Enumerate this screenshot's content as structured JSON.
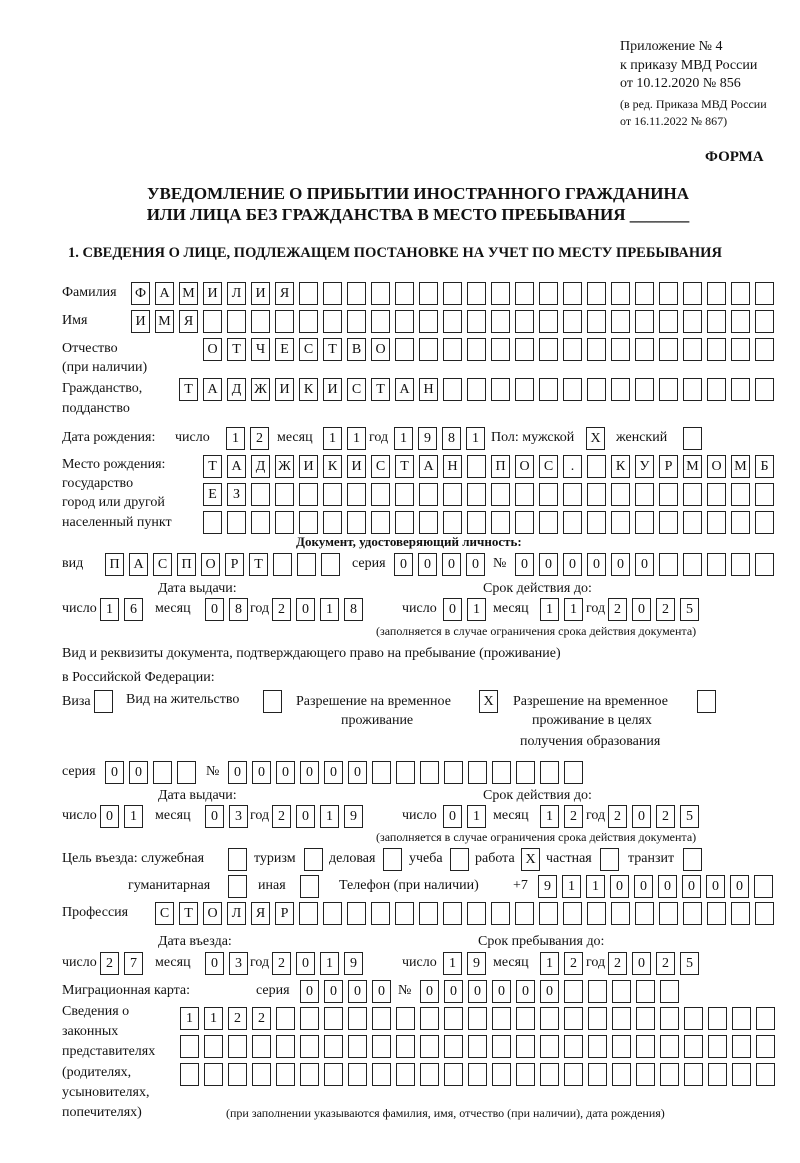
{
  "header": {
    "appendix": "Приложение № 4",
    "order": "к приказу МВД России",
    "order_date": "от 10.12.2020 № 856",
    "amend1": "(в ред. Приказа МВД России",
    "amend2": "от 16.11.2022 № 867)",
    "form_label": "ФОРМА"
  },
  "title": {
    "line1": "УВЕДОМЛЕНИЕ О ПРИБЫТИИ ИНОСТРАННОГО ГРАЖДАНИНА",
    "line2": "ИЛИ ЛИЦА БЕЗ ГРАЖДАНСТВА В МЕСТО ПРЕБЫВАНИЯ _______"
  },
  "section1": {
    "heading": "1. СВЕДЕНИЯ О ЛИЦЕ, ПОДЛЕЖАЩЕМ ПОСТАНОВКЕ НА УЧЕТ ПО МЕСТУ ПРЕБЫВАНИЯ",
    "labels": {
      "surname": "Фамилия",
      "name": "Имя",
      "patronymic1": "Отчество",
      "patronymic2": "(при наличии)",
      "citizenship1": "Гражданство,",
      "citizenship2": "подданство",
      "birth_date": "Дата рождения:",
      "day": "число",
      "month": "месяц",
      "year": "год",
      "sex_male": "Пол: мужской",
      "sex_female": "женский",
      "birthplace1": "Место рождения:",
      "birthplace2": "государство",
      "birthplace3": "город или другой",
      "birthplace4": "населенный пункт",
      "id_doc": "Документ, удостоверяющий личность:",
      "kind": "вид",
      "series": "серия",
      "number": "№",
      "issue_date": "Дата выдачи:",
      "valid_until": "Срок действия до:",
      "validity_note": "(заполняется в случае ограничения срока действия документа)",
      "stay_doc1": "Вид и реквизиты документа, подтверждающего право на пребывание (проживание)",
      "stay_doc2": "в Российской Федерации:",
      "visa": "Виза",
      "residence": "Вид на жительство",
      "temp_permit1": "Разрешение на временное",
      "temp_permit2": "проживание",
      "edu_permit1": "Разрешение на временное",
      "edu_permit2": "проживание в целях",
      "edu_permit3": "получения образования",
      "purpose": "Цель въезда: служебная",
      "tourism": "туризм",
      "business": "деловая",
      "study": "учеба",
      "work": "работа",
      "private": "частная",
      "transit": "транзит",
      "humanitarian": "гуманитарная",
      "other": "иная",
      "phone": "Телефон (при наличии)",
      "phone_prefix": "+7",
      "profession": "Профессия",
      "entry_date": "Дата въезда:",
      "stay_until": "Срок пребывания до:",
      "migration_card": "Миграционная карта:",
      "reps1": "Сведения о",
      "reps2": "законных",
      "reps3": "представителях",
      "reps4": "(родителях,",
      "reps5": "усыновителях,",
      "reps6": "попечителях)",
      "reps_note": "(при заполнении указываются фамилия, имя, отчество (при наличии), дата рождения)"
    },
    "values": {
      "surname": "ФАМИЛИЯ",
      "name": "ИМЯ",
      "patronymic": "ОТЧЕСТВО",
      "citizenship": "ТАДЖИКИСТАН",
      "birth_day": "12",
      "birth_month": "11",
      "birth_year": "1981",
      "sex_male": "X",
      "sex_female": "",
      "birthplace_row1": "ТАДЖИКИСТАН ПОС. КУРМОМБ",
      "birthplace_row2": "ЕЗ",
      "birthplace_row3": "",
      "id_kind": "ПАСПОРТ",
      "id_series": "0000",
      "id_number": "000000",
      "id_issue_day": "16",
      "id_issue_month": "08",
      "id_issue_year": "2018",
      "id_valid_day": "01",
      "id_valid_month": "11",
      "id_valid_year": "2025",
      "visa": "",
      "residence": "",
      "temp_permit": "X",
      "edu_permit": "",
      "stay_series": "00",
      "stay_number": "000000",
      "stay_issue_day": "01",
      "stay_issue_month": "03",
      "stay_issue_year": "2019",
      "stay_valid_day": "01",
      "stay_valid_month": "12",
      "stay_valid_year": "2025",
      "purpose_service": "",
      "purpose_tourism": "",
      "purpose_business": "",
      "purpose_study": "",
      "purpose_work": "X",
      "purpose_private": "",
      "purpose_transit": "",
      "purpose_humanitarian": "",
      "purpose_other": "",
      "phone": "911000000",
      "profession": "СТОЛЯР",
      "entry_day": "27",
      "entry_month": "03",
      "entry_year": "2019",
      "stay_until_day": "19",
      "stay_until_month": "12",
      "stay_until_year": "2025",
      "mig_series": "0000",
      "mig_number": "000000",
      "reps_row1": "1122",
      "reps_row2": "",
      "reps_row3": ""
    }
  }
}
